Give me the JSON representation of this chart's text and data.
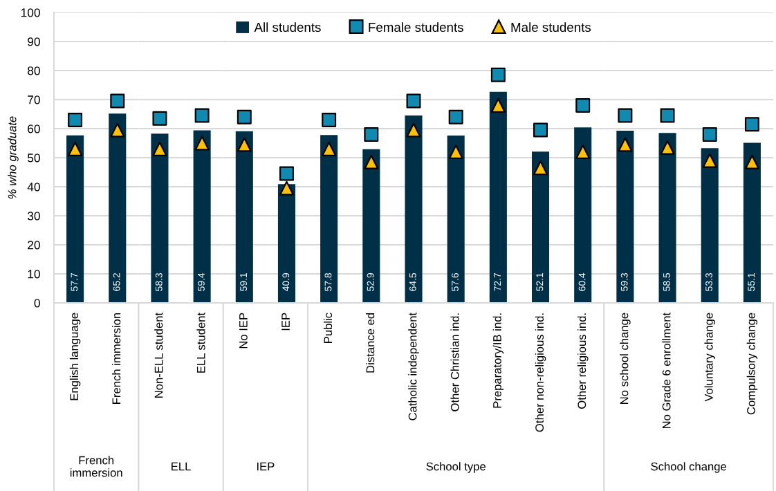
{
  "chart_data": [
    {
      "type": "bar",
      "xlabel": "French immersion",
      "ylabel": "% who graduate",
      "categories": [
        "English language",
        "French immersion"
      ],
      "ylim": [
        0,
        100
      ],
      "yticks": [
        0,
        10,
        20,
        30,
        40,
        50,
        60,
        70,
        80,
        90,
        100
      ],
      "grid": "y",
      "series": [
        {
          "color": "#002f48",
          "values": [
            57.7,
            65.2
          ],
          "value_labels": [
            "57.7",
            "65.2"
          ]
        },
        {
          "type": "scatter",
          "marker": "square",
          "color": "#118ab2",
          "values": [
            63,
            69.5
          ]
        },
        {
          "type": "scatter",
          "marker": "triangle",
          "color": "#ffc000",
          "values": [
            53,
            59.5
          ]
        }
      ]
    },
    {
      "type": "bar",
      "xlabel": "ELL",
      "categories": [
        "Non-ELL student",
        "ELL student"
      ],
      "ylim": [
        0,
        100
      ],
      "yticks": [
        0,
        10,
        20,
        30,
        40,
        50,
        60,
        70,
        80,
        90,
        100
      ],
      "grid": "y",
      "tick_labels": "x",
      "series": [
        {
          "color": "#002f48",
          "values": [
            58.3,
            59.4
          ],
          "value_labels": [
            "58.3",
            "59.4"
          ]
        },
        {
          "type": "scatter",
          "marker": "square",
          "color": "#118ab2",
          "values": [
            63.5,
            64.5
          ]
        },
        {
          "type": "scatter",
          "marker": "triangle",
          "color": "#ffc000",
          "values": [
            53,
            55
          ]
        }
      ]
    },
    {
      "type": "bar",
      "xlabel": "IEP",
      "categories": [
        "No IEP",
        "IEP"
      ],
      "ylim": [
        0,
        100
      ],
      "yticks": [
        0,
        10,
        20,
        30,
        40,
        50,
        60,
        70,
        80,
        90,
        100
      ],
      "grid": "y",
      "tick_labels": "x",
      "series": [
        {
          "color": "#002f48",
          "values": [
            59.1,
            40.9
          ],
          "value_labels": [
            "59.1",
            "40.9"
          ]
        },
        {
          "type": "scatter",
          "marker": "square",
          "color": "#118ab2",
          "values": [
            64,
            44.5
          ]
        },
        {
          "type": "scatter",
          "marker": "triangle",
          "color": "#ffc000",
          "values": [
            54.5,
            39.5
          ]
        }
      ]
    },
    {
      "type": "bar",
      "xlabel": "School type",
      "categories": [
        "Public",
        "Distance ed",
        "Catholic independent",
        "Other Christian ind.",
        "Preparatory/IB ind.",
        "Other non-religious ind.",
        "Other religious ind."
      ],
      "ylim": [
        0,
        100
      ],
      "yticks": [
        0,
        10,
        20,
        30,
        40,
        50,
        60,
        70,
        80,
        90,
        100
      ],
      "grid": "y",
      "tick_labels": "x",
      "legend": "top",
      "series": [
        {
          "name": "All students",
          "color": "#002f48",
          "values": [
            57.8,
            52.9,
            64.5,
            57.6,
            72.7,
            52.1,
            60.4
          ],
          "value_labels": [
            "57.8",
            "52.9",
            "64.5",
            "57.6",
            "72.7",
            "52.1",
            "60.4"
          ]
        },
        {
          "type": "scatter",
          "name": "Female students",
          "marker": "square",
          "color": "#118ab2",
          "values": [
            63,
            58,
            69.5,
            64,
            78.5,
            59.5,
            68
          ]
        },
        {
          "type": "scatter",
          "name": "Male students",
          "marker": "triangle",
          "color": "#ffc000",
          "values": [
            53,
            48.5,
            59.5,
            52,
            68,
            46.5,
            52
          ]
        }
      ]
    },
    {
      "type": "bar",
      "xlabel": "School change",
      "categories": [
        "No school change",
        "No Grade 6 enrollment",
        "Voluntary change",
        "Compulsory change"
      ],
      "ylim": [
        0,
        100
      ],
      "yticks": [
        0,
        10,
        20,
        30,
        40,
        50,
        60,
        70,
        80,
        90,
        100
      ],
      "grid": "y",
      "tick_labels": "x",
      "series": [
        {
          "color": "#002f48",
          "values": [
            59.3,
            58.5,
            53.3,
            55.1
          ],
          "value_labels": [
            "59.3",
            "58.5",
            "53.3",
            "55.1"
          ]
        },
        {
          "type": "scatter",
          "marker": "square",
          "color": "#118ab2",
          "values": [
            64.5,
            64.5,
            58,
            61.5
          ]
        },
        {
          "type": "scatter",
          "marker": "triangle",
          "color": "#ffc000",
          "values": [
            54.5,
            53.5,
            49,
            48.5
          ]
        }
      ]
    }
  ]
}
